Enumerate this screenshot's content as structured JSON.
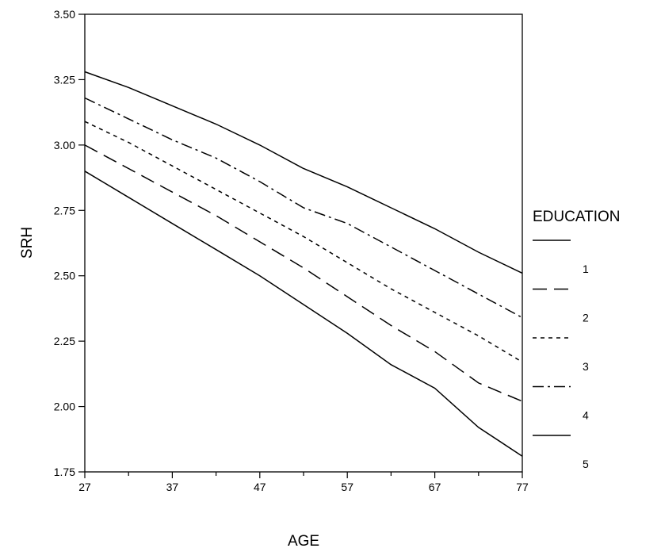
{
  "chart_data": {
    "type": "line",
    "xlabel": "AGE",
    "ylabel": "SRH",
    "xlim": [
      27,
      77
    ],
    "ylim": [
      1.75,
      3.5
    ],
    "x_ticks": [
      "27",
      "37",
      "47",
      "57",
      "67",
      "77"
    ],
    "y_ticks": [
      "1.75",
      "2.00",
      "2.25",
      "2.50",
      "2.75",
      "3.00",
      "3.25",
      "3.50"
    ],
    "x_tick_values": [
      27,
      37,
      47,
      57,
      67,
      77
    ],
    "y_tick_values": [
      1.75,
      2.0,
      2.25,
      2.5,
      2.75,
      3.0,
      3.25,
      3.5
    ],
    "x_minor_ticks": [
      32,
      42,
      52,
      62,
      72
    ],
    "grid": false,
    "legend": {
      "title": "EDUCATION",
      "position": "right"
    },
    "x": [
      27,
      32,
      37,
      42,
      47,
      52,
      57,
      62,
      67,
      72,
      77
    ],
    "series": [
      {
        "name": "1",
        "style": "solid",
        "values": [
          2.9,
          2.8,
          2.7,
          2.6,
          2.5,
          2.39,
          2.28,
          2.16,
          2.07,
          1.92,
          1.81
        ]
      },
      {
        "name": "2",
        "style": "dashed",
        "values": [
          3.0,
          2.91,
          2.82,
          2.73,
          2.63,
          2.53,
          2.42,
          2.31,
          2.21,
          2.09,
          2.02
        ]
      },
      {
        "name": "3",
        "style": "dotted",
        "values": [
          3.09,
          3.01,
          2.92,
          2.83,
          2.74,
          2.65,
          2.55,
          2.45,
          2.36,
          2.27,
          2.17
        ]
      },
      {
        "name": "4",
        "style": "dashdot",
        "values": [
          3.18,
          3.1,
          3.02,
          2.95,
          2.86,
          2.76,
          2.7,
          2.61,
          2.52,
          2.43,
          2.34
        ]
      },
      {
        "name": "5",
        "style": "solid",
        "values": [
          3.28,
          3.22,
          3.15,
          3.08,
          3.0,
          2.91,
          2.84,
          2.76,
          2.68,
          2.59,
          2.51
        ]
      }
    ]
  }
}
